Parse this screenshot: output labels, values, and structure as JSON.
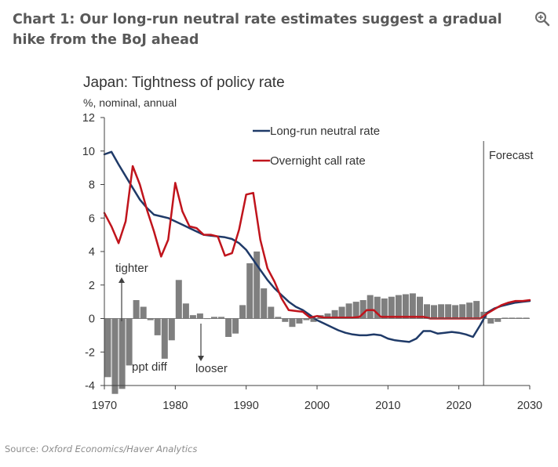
{
  "header": {
    "title": "Chart 1: Our long-run neutral rate estimates suggest a gradual hike from the BoJ ahead",
    "zoom_icon": "zoom-in-icon"
  },
  "source": {
    "prefix": "Source:",
    "text": "Oxford Economics/Haver Analytics"
  },
  "colors": {
    "neutral": "#1F3A68",
    "overnight": "#C0141C",
    "diff_bars": "#7F7F7F",
    "forecast_line": "#808080"
  },
  "chart_data": {
    "type": "line",
    "title": "Japan: Tightness of policy rate",
    "ylabel": "%, nominal, annual",
    "xlim": [
      1970,
      2030
    ],
    "ylim": [
      -4,
      12
    ],
    "xticks": [
      1970,
      1980,
      1990,
      2000,
      2010,
      2020,
      2030
    ],
    "yticks": [
      12,
      10,
      8,
      6,
      4,
      2,
      0,
      -2,
      -4
    ],
    "grid": false,
    "legend_position": "top-center",
    "series": [
      {
        "name": "Long-run neutral rate",
        "type": "line",
        "color": "#1F3A68",
        "x": [
          1970,
          1971,
          1972,
          1973,
          1974,
          1975,
          1976,
          1977,
          1978,
          1979,
          1980,
          1981,
          1982,
          1983,
          1984,
          1985,
          1986,
          1987,
          1988,
          1989,
          1990,
          1991,
          1992,
          1993,
          1994,
          1995,
          1996,
          1997,
          1998,
          1999,
          2000,
          2001,
          2002,
          2003,
          2004,
          2005,
          2006,
          2007,
          2008,
          2009,
          2010,
          2011,
          2012,
          2013,
          2014,
          2015,
          2016,
          2017,
          2018,
          2019,
          2020,
          2021,
          2022,
          2023,
          2024,
          2025,
          2026,
          2027,
          2028,
          2029,
          2030
        ],
        "values": [
          9.8,
          9.95,
          9.2,
          8.5,
          7.8,
          7.1,
          6.6,
          6.2,
          6.1,
          6.0,
          5.8,
          5.6,
          5.4,
          5.2,
          5.0,
          4.95,
          4.9,
          4.85,
          4.75,
          4.5,
          4.1,
          3.5,
          2.9,
          2.3,
          1.8,
          1.4,
          1.0,
          0.7,
          0.5,
          0.2,
          -0.1,
          -0.3,
          -0.5,
          -0.7,
          -0.85,
          -0.95,
          -1.0,
          -1.0,
          -0.95,
          -1.0,
          -1.2,
          -1.3,
          -1.35,
          -1.4,
          -1.2,
          -0.75,
          -0.75,
          -0.9,
          -0.85,
          -0.8,
          -0.85,
          -0.95,
          -1.1,
          -0.4,
          0.35,
          0.6,
          0.75,
          0.85,
          0.95,
          1.0,
          1.05
        ]
      },
      {
        "name": "Overnight call rate",
        "type": "line",
        "color": "#C0141C",
        "x": [
          1970,
          1971,
          1972,
          1973,
          1974,
          1975,
          1976,
          1977,
          1978,
          1979,
          1980,
          1981,
          1982,
          1983,
          1984,
          1985,
          1986,
          1987,
          1988,
          1989,
          1990,
          1991,
          1992,
          1993,
          1994,
          1995,
          1996,
          1997,
          1998,
          1999,
          2000,
          2001,
          2002,
          2003,
          2004,
          2005,
          2006,
          2007,
          2008,
          2009,
          2010,
          2011,
          2012,
          2013,
          2014,
          2015,
          2016,
          2017,
          2018,
          2019,
          2020,
          2021,
          2022,
          2023,
          2024,
          2025,
          2026,
          2027,
          2028,
          2029,
          2030
        ],
        "values": [
          6.3,
          5.5,
          4.5,
          5.8,
          9.1,
          8.0,
          6.5,
          5.2,
          3.7,
          4.7,
          8.1,
          6.4,
          5.5,
          5.4,
          5.0,
          5.0,
          4.9,
          3.75,
          3.9,
          5.3,
          7.4,
          7.5,
          4.7,
          3.0,
          2.2,
          1.2,
          0.5,
          0.45,
          0.4,
          0.05,
          0.15,
          0.05,
          0.05,
          0.05,
          0.05,
          0.05,
          0.1,
          0.5,
          0.5,
          0.1,
          0.1,
          0.1,
          0.1,
          0.1,
          0.1,
          0.1,
          0.0,
          0.0,
          0.0,
          0.0,
          0.0,
          0.0,
          0.0,
          0.0,
          0.3,
          0.55,
          0.8,
          0.95,
          1.05,
          1.05,
          1.1
        ]
      },
      {
        "name": "ppt diff",
        "type": "bar",
        "color": "#7F7F7F",
        "x": [
          1970,
          1971,
          1972,
          1973,
          1974,
          1975,
          1976,
          1977,
          1978,
          1979,
          1980,
          1981,
          1982,
          1983,
          1984,
          1985,
          1986,
          1987,
          1988,
          1989,
          1990,
          1991,
          1992,
          1993,
          1994,
          1995,
          1996,
          1997,
          1998,
          1999,
          2000,
          2001,
          2002,
          2003,
          2004,
          2005,
          2006,
          2007,
          2008,
          2009,
          2010,
          2011,
          2012,
          2013,
          2014,
          2015,
          2016,
          2017,
          2018,
          2019,
          2020,
          2021,
          2022,
          2023,
          2024,
          2025,
          2026,
          2027,
          2028,
          2029
        ],
        "values": [
          -3.5,
          -4.5,
          -4.2,
          -2.8,
          1.1,
          0.7,
          -0.1,
          -1.0,
          -2.4,
          -1.3,
          2.3,
          0.9,
          0.2,
          0.3,
          0.0,
          0.1,
          0.1,
          -1.1,
          -0.9,
          0.8,
          3.3,
          4.0,
          1.8,
          0.7,
          0.1,
          -0.2,
          -0.5,
          -0.3,
          -0.1,
          -0.2,
          0.2,
          0.3,
          0.5,
          0.7,
          0.9,
          1.0,
          1.1,
          1.4,
          1.3,
          1.2,
          1.3,
          1.4,
          1.45,
          1.5,
          1.3,
          0.85,
          0.8,
          0.85,
          0.85,
          0.8,
          0.85,
          0.95,
          1.05,
          0.4,
          -0.3,
          -0.2,
          0.05,
          0.05,
          0.05,
          0.05
        ]
      }
    ],
    "annotations": {
      "forecast": {
        "label": "Forecast",
        "x": 2023.5
      },
      "tighter": {
        "label": "tighter"
      },
      "looser": {
        "label": "looser"
      },
      "ppt_diff": {
        "label": "ppt diff"
      }
    }
  }
}
